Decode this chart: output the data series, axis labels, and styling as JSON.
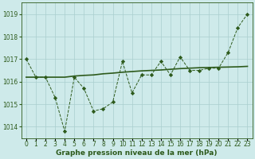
{
  "title": "Graphe pression niveau de la mer (hPa)",
  "x_values": [
    0,
    1,
    2,
    3,
    4,
    5,
    6,
    7,
    8,
    9,
    10,
    11,
    12,
    13,
    14,
    15,
    16,
    17,
    18,
    19,
    20,
    21,
    22,
    23
  ],
  "y_main": [
    1017.0,
    1016.2,
    1016.2,
    1015.3,
    1013.8,
    1016.2,
    1015.7,
    1014.7,
    1014.8,
    1015.1,
    1016.9,
    1015.5,
    1016.3,
    1016.3,
    1016.9,
    1016.3,
    1017.1,
    1016.5,
    1016.5,
    1016.6,
    1016.6,
    1017.3,
    1018.4,
    1019.0
  ],
  "y_smooth": [
    1016.2,
    1016.2,
    1016.2,
    1016.2,
    1016.2,
    1016.25,
    1016.28,
    1016.3,
    1016.35,
    1016.38,
    1016.42,
    1016.45,
    1016.48,
    1016.5,
    1016.52,
    1016.55,
    1016.58,
    1016.6,
    1016.62,
    1016.63,
    1016.64,
    1016.65,
    1016.66,
    1016.68
  ],
  "line_color": "#2d5a1b",
  "marker": "D",
  "marker_size": 2.2,
  "bg_color": "#ceeaea",
  "grid_color": "#aacece",
  "text_color": "#2d5a1b",
  "ylim": [
    1013.5,
    1019.5
  ],
  "yticks": [
    1014,
    1015,
    1016,
    1017,
    1018,
    1019
  ],
  "xlim": [
    -0.5,
    23.5
  ],
  "xtick_labels": [
    "0",
    "1",
    "2",
    "3",
    "4",
    "5",
    "6",
    "7",
    "8",
    "9",
    "10",
    "11",
    "12",
    "13",
    "14",
    "15",
    "16",
    "17",
    "18",
    "19",
    "20",
    "21",
    "22",
    "23"
  ],
  "fontsize_label": 6.5,
  "fontsize_tick": 5.5
}
